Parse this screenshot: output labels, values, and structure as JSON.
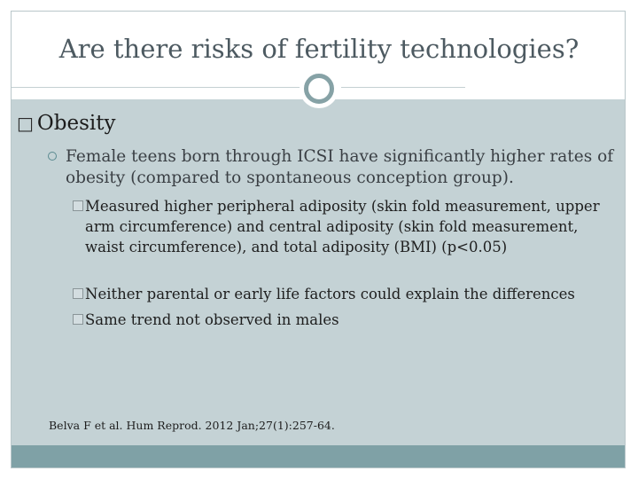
{
  "slide": {
    "title": "Are there risks of fertility technologies?",
    "heading": {
      "bullet": "□",
      "text": "Obesity"
    },
    "point": {
      "text": "Female teens born through ICSI have significantly higher rates of obesity (compared to spontaneous conception group)."
    },
    "subpoints": [
      {
        "text": "Measured higher peripheral adiposity (skin fold measurement, upper arm circumference) and central adiposity (skin fold measurement, waist circumference), and total adiposity (BMI) (p<0.05)"
      },
      {
        "text": "Neither parental or early life factors could explain the differences"
      },
      {
        "text": "Same trend not observed in males"
      }
    ],
    "citation": "Belva F et al. Hum Reprod. 2012 Jan;27(1):257-64."
  },
  "colors": {
    "content_band": "#c4d2d5",
    "footer_band": "#7fa1a6",
    "ornament": "#86a2a6",
    "title_text": "#4d5a61"
  }
}
